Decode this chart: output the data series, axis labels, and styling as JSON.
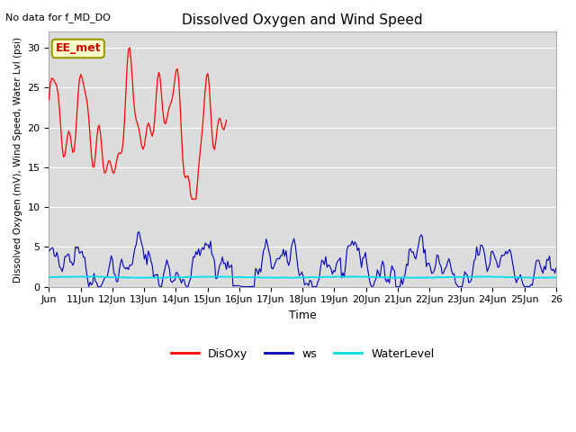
{
  "title": "Dissolved Oxygen and Wind Speed",
  "top_left_text": "No data for f_MD_DO",
  "annotation_text": "EE_met",
  "ylabel": "Dissolved Oxygen (mV), Wind Speed, Water Lvl (psi)",
  "xlabel": "Time",
  "ylim": [
    0,
    32
  ],
  "yticks": [
    0,
    5,
    10,
    15,
    20,
    25,
    30
  ],
  "background_color": "#dcdcdc",
  "legend_labels": [
    "DisOxy",
    "ws",
    "WaterLevel"
  ],
  "legend_colors": [
    "#ff0000",
    "#0000bb",
    "#00dddd"
  ],
  "disoxy_color": "#ff0000",
  "ws_color": "#0000bb",
  "water_color": "#00ddee",
  "x_start": 10,
  "x_end": 26,
  "x_tick_days": [
    10,
    11,
    12,
    13,
    14,
    15,
    16,
    17,
    18,
    19,
    20,
    21,
    22,
    23,
    24,
    25,
    26
  ],
  "x_tick_labels": [
    "Jun",
    "11Jun",
    "12Jun",
    "13Jun",
    "14Jun",
    "15Jun",
    "16Jun",
    "17Jun",
    "18Jun",
    "19Jun",
    "20Jun",
    "21Jun",
    "22Jun",
    "23Jun",
    "24Jun",
    "25Jun",
    "26"
  ],
  "disoxy_x_start": 10,
  "disoxy_x_end": 15.6,
  "ws_gap_start": 15.8,
  "ws_gap_end": 16.5
}
